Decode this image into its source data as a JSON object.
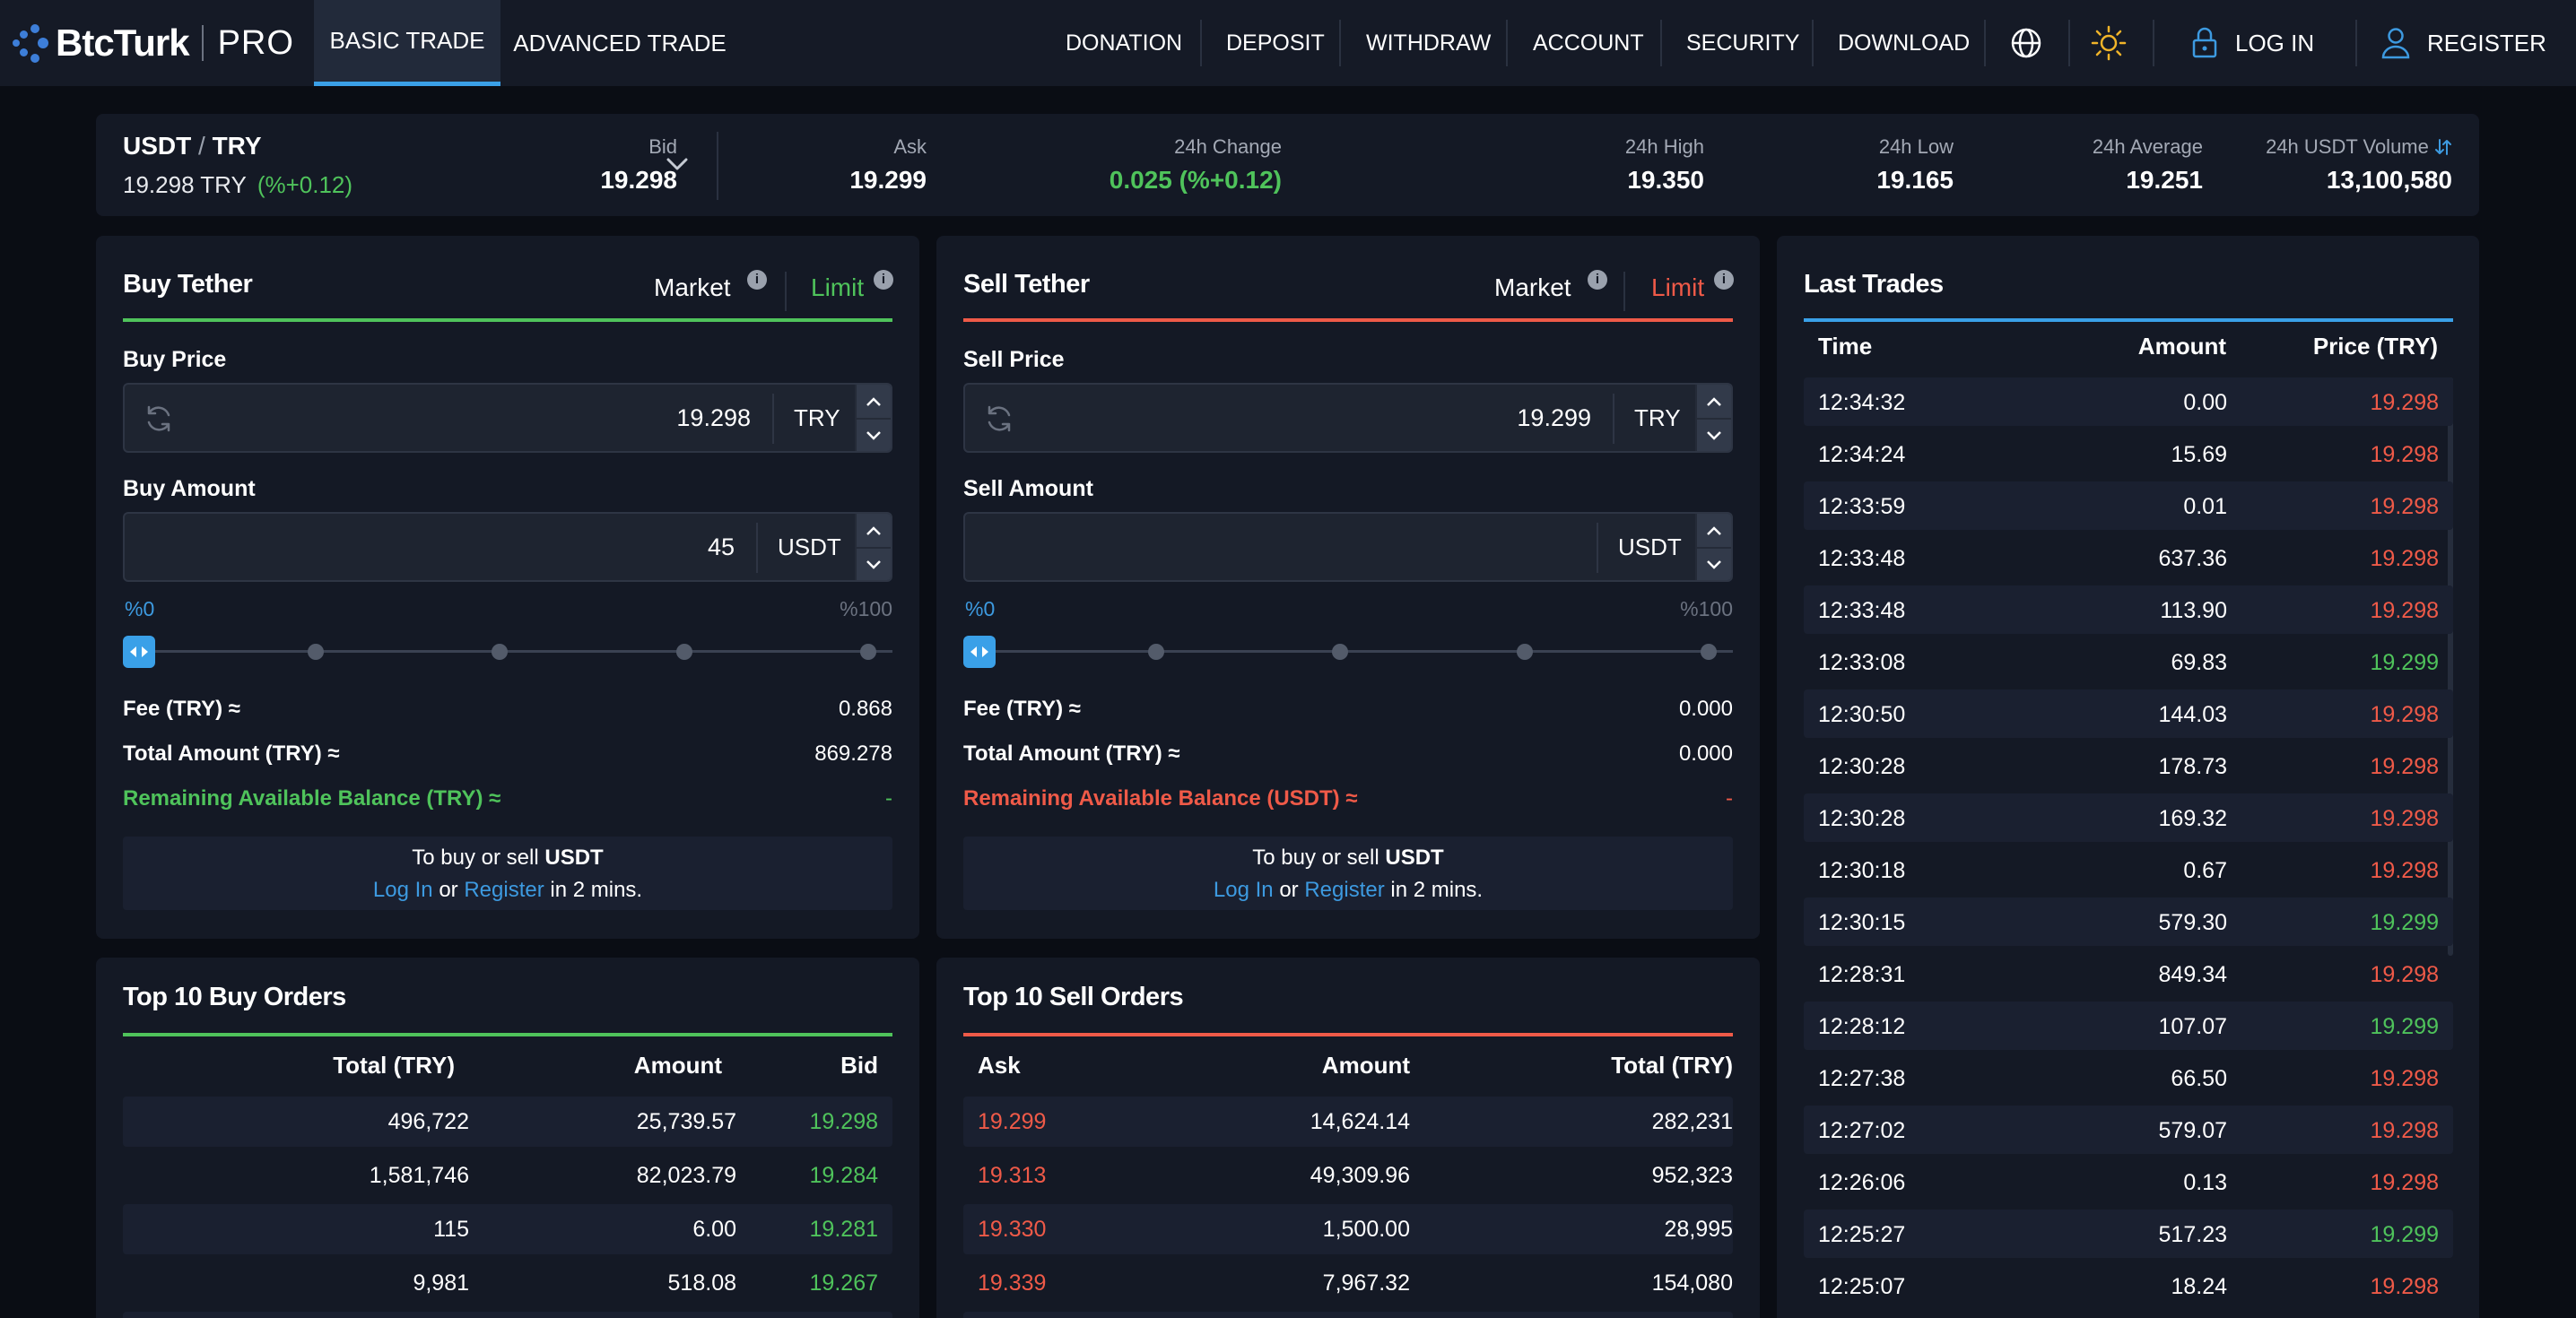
{
  "nav": {
    "logo_text": "BtcTurk",
    "logo_pro": "PRO",
    "tabs": [
      {
        "label": "BASIC TRADE",
        "active": true
      },
      {
        "label": "ADVANCED TRADE",
        "active": false
      }
    ],
    "links": [
      "DONATION",
      "DEPOSIT",
      "WITHDRAW",
      "ACCOUNT",
      "SECURITY",
      "DOWNLOAD"
    ],
    "login": "LOG IN",
    "register": "REGISTER",
    "icons": [
      "globe-icon",
      "sun-icon",
      "lock-icon",
      "user-icon"
    ]
  },
  "ticker": {
    "base": "USDT",
    "sep": "/",
    "quote": "TRY",
    "price": "19.298 TRY",
    "change_pct": "(%+0.12)",
    "stats": [
      {
        "label": "Bid",
        "value": "19.298",
        "green": false
      },
      {
        "label": "Ask",
        "value": "19.299",
        "green": false
      },
      {
        "label": "24h Change",
        "value": "0.025 (%+0.12)",
        "green": true
      },
      {
        "label": "24h High",
        "value": "19.350",
        "green": false
      },
      {
        "label": "24h Low",
        "value": "19.165",
        "green": false
      },
      {
        "label": "24h Average",
        "value": "19.251",
        "green": false
      },
      {
        "label": "24h USDT Volume",
        "value": "13,100,580",
        "green": false
      }
    ]
  },
  "buy": {
    "title": "Buy Tether",
    "market": "Market",
    "limit": "Limit",
    "price_label": "Buy Price",
    "price_value": "19.298",
    "price_unit": "TRY",
    "amount_label": "Buy Amount",
    "amount_value": "45",
    "amount_unit": "USDT",
    "pct_min": "%0",
    "pct_max": "%100",
    "slider_level": 0,
    "fee_label": "Fee (TRY) ≈",
    "fee_value": "0.868",
    "total_label": "Total Amount (TRY) ≈",
    "total_value": "869.278",
    "balance_label": "Remaining Available Balance (TRY) ≈",
    "balance_value": "-",
    "notice_pre": "To buy or sell",
    "notice_coin": "USDT",
    "notice_login": "Log In",
    "notice_or": "or",
    "notice_register": "Register",
    "notice_post": "in 2 mins."
  },
  "sell": {
    "title": "Sell Tether",
    "market": "Market",
    "limit": "Limit",
    "price_label": "Sell Price",
    "price_value": "19.299",
    "price_unit": "TRY",
    "amount_label": "Sell Amount",
    "amount_value": "",
    "amount_unit": "USDT",
    "pct_min": "%0",
    "pct_max": "%100",
    "slider_level": 0,
    "fee_label": "Fee (TRY) ≈",
    "fee_value": "0.000",
    "total_label": "Total Amount (TRY) ≈",
    "total_value": "0.000",
    "balance_label": "Remaining Available Balance (USDT) ≈",
    "balance_value": "-",
    "notice_pre": "To buy or sell",
    "notice_coin": "USDT",
    "notice_login": "Log In",
    "notice_or": "or",
    "notice_register": "Register",
    "notice_post": "in 2 mins."
  },
  "buy_orders": {
    "title": "Top 10 Buy Orders",
    "headers": [
      "Total (TRY)",
      "Amount",
      "Bid"
    ],
    "rows": [
      [
        "496,722",
        "25,739.57",
        "19.298"
      ],
      [
        "1,581,746",
        "82,023.79",
        "19.284"
      ],
      [
        "115",
        "6.00",
        "19.281"
      ],
      [
        "9,981",
        "518.08",
        "19.267"
      ]
    ]
  },
  "sell_orders": {
    "title": "Top 10 Sell Orders",
    "headers": [
      "Ask",
      "Amount",
      "Total (TRY)"
    ],
    "rows": [
      [
        "19.299",
        "14,624.14",
        "282,231"
      ],
      [
        "19.313",
        "49,309.96",
        "952,323"
      ],
      [
        "19.330",
        "1,500.00",
        "28,995"
      ],
      [
        "19.339",
        "7,967.32",
        "154,080"
      ]
    ]
  },
  "last_trades": {
    "title": "Last Trades",
    "headers": [
      "Time",
      "Amount",
      "Price (TRY)"
    ],
    "rows": [
      {
        "time": "12:34:32",
        "amount": "0.",
        "amount_dim": "00",
        "price": "19.298",
        "side": "sell"
      },
      {
        "time": "12:34:24",
        "amount": "15.69",
        "amount_dim": "",
        "price": "19.298",
        "side": "sell"
      },
      {
        "time": "12:33:59",
        "amount": "0.01",
        "amount_dim": "",
        "price": "19.298",
        "side": "sell"
      },
      {
        "time": "12:33:48",
        "amount": "637.36",
        "amount_dim": "",
        "price": "19.298",
        "side": "sell"
      },
      {
        "time": "12:33:48",
        "amount": "113.9",
        "amount_dim": "0",
        "price": "19.298",
        "side": "sell"
      },
      {
        "time": "12:33:08",
        "amount": "69.83",
        "amount_dim": "",
        "price": "19.299",
        "side": "buy"
      },
      {
        "time": "12:30:50",
        "amount": "144.03",
        "amount_dim": "",
        "price": "19.298",
        "side": "sell"
      },
      {
        "time": "12:30:28",
        "amount": "178.73",
        "amount_dim": "",
        "price": "19.298",
        "side": "sell"
      },
      {
        "time": "12:30:28",
        "amount": "169.32",
        "amount_dim": "",
        "price": "19.298",
        "side": "sell"
      },
      {
        "time": "12:30:18",
        "amount": "0.67",
        "amount_dim": "",
        "price": "19.298",
        "side": "sell"
      },
      {
        "time": "12:30:15",
        "amount": "579.3",
        "amount_dim": "0",
        "price": "19.299",
        "side": "buy"
      },
      {
        "time": "12:28:31",
        "amount": "849.34",
        "amount_dim": "",
        "price": "19.298",
        "side": "sell"
      },
      {
        "time": "12:28:12",
        "amount": "107.07",
        "amount_dim": "",
        "price": "19.299",
        "side": "buy"
      },
      {
        "time": "12:27:38",
        "amount": "66.5",
        "amount_dim": "0",
        "price": "19.298",
        "side": "sell"
      },
      {
        "time": "12:27:02",
        "amount": "579.07",
        "amount_dim": "",
        "price": "19.298",
        "side": "sell"
      },
      {
        "time": "12:26:06",
        "amount": "0.13",
        "amount_dim": "",
        "price": "19.298",
        "side": "sell"
      },
      {
        "time": "12:25:27",
        "amount": "517.23",
        "amount_dim": "",
        "price": "19.299",
        "side": "buy"
      },
      {
        "time": "12:25:07",
        "amount": "18.24",
        "amount_dim": "",
        "price": "19.298",
        "side": "sell"
      }
    ]
  },
  "colors": {
    "green": "#4fc35b",
    "red": "#ef5a48",
    "accent": "#3aa0e8",
    "background": "#0a0d14",
    "panel": "#141925"
  }
}
